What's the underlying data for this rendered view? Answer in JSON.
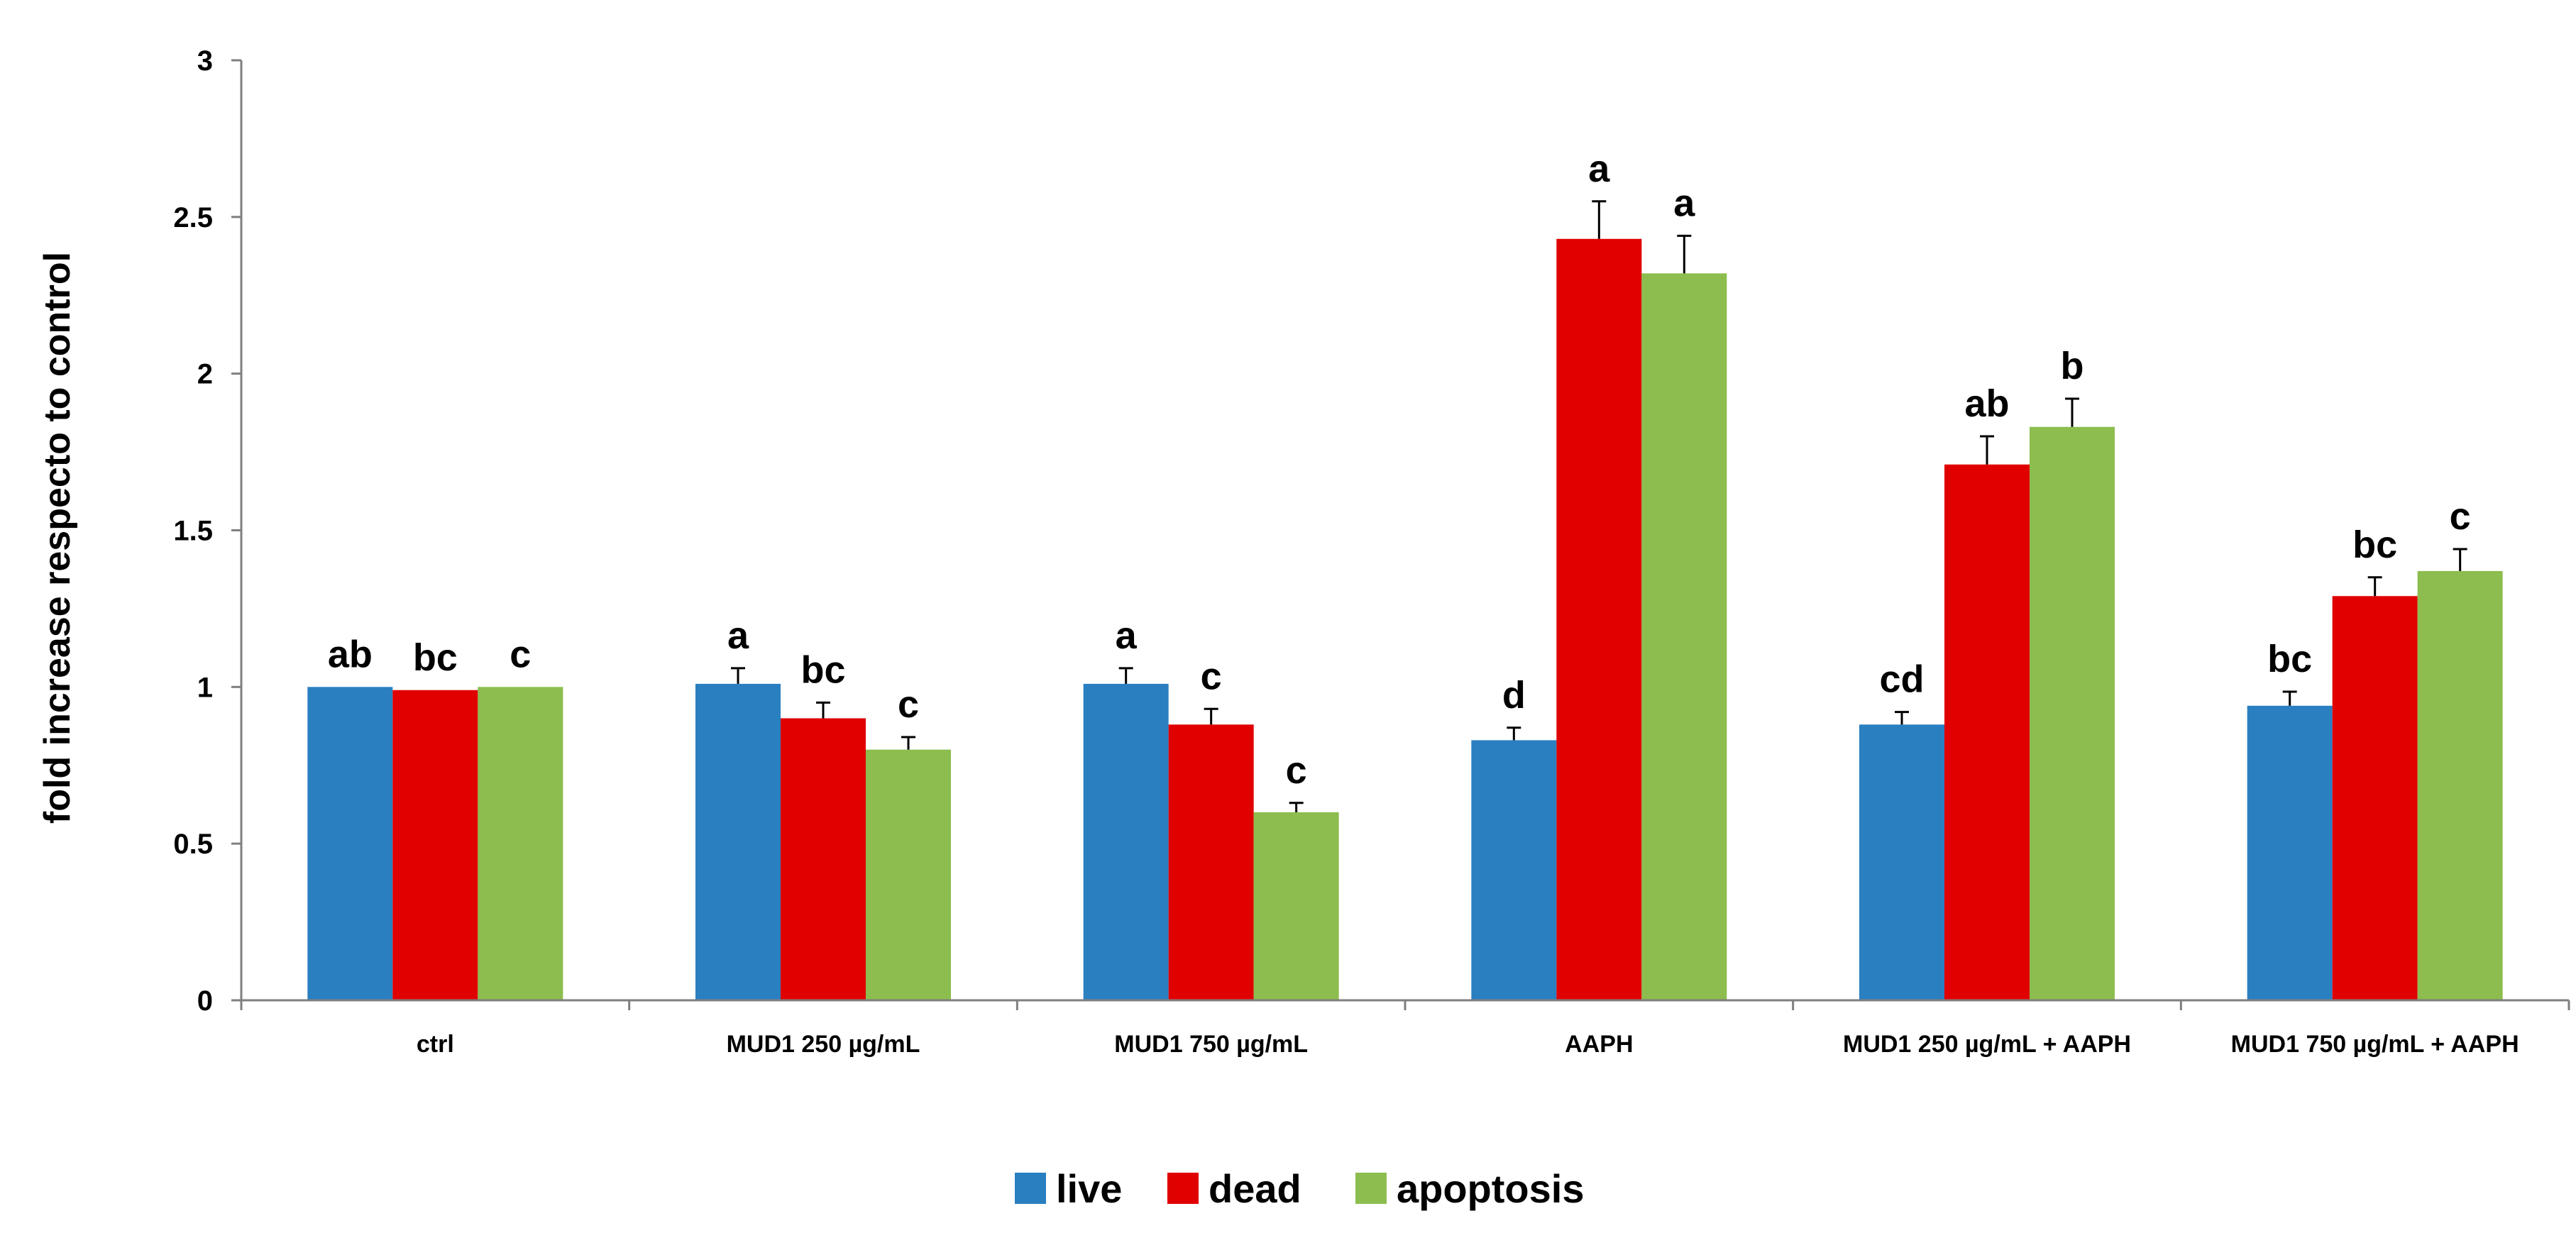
{
  "chart_data": {
    "type": "bar",
    "title": "",
    "xlabel": "",
    "ylabel": "fold increase respecto to control",
    "ylim": [
      0,
      3
    ],
    "yticks": [
      "0",
      "0.5",
      "1",
      "1.5",
      "2",
      "2.5",
      "3"
    ],
    "grid": false,
    "legend_position": "bottom",
    "categories": [
      "ctrl",
      "MUD1 250 µg/mL",
      "MUD1 750 µg/mL",
      "AAPH",
      "MUD1 250 µg/mL + AAPH",
      "MUD1 750 µg/mL + AAPH"
    ],
    "series": [
      {
        "name": "live",
        "color": "#2A7FC1",
        "values": [
          1.0,
          1.01,
          1.01,
          0.83,
          0.88,
          0.94
        ],
        "errors": [
          0.0,
          0.05,
          0.05,
          0.04,
          0.04,
          0.045
        ],
        "labels": [
          "ab",
          "a",
          "a",
          "d",
          "cd",
          "bc"
        ]
      },
      {
        "name": "dead",
        "color": "#E00000",
        "values": [
          0.99,
          0.9,
          0.88,
          2.43,
          1.71,
          1.29
        ],
        "errors": [
          0.0,
          0.05,
          0.05,
          0.12,
          0.09,
          0.06
        ],
        "labels": [
          "bc",
          "bc",
          "c",
          "a",
          "ab",
          "bc"
        ]
      },
      {
        "name": "apoptosis",
        "color": "#8CBD4E",
        "values": [
          1.0,
          0.8,
          0.6,
          2.32,
          1.83,
          1.37
        ],
        "errors": [
          0.0,
          0.04,
          0.03,
          0.12,
          0.09,
          0.07
        ],
        "labels": [
          "c",
          "c",
          "c",
          "a",
          "b",
          "c"
        ]
      }
    ]
  }
}
